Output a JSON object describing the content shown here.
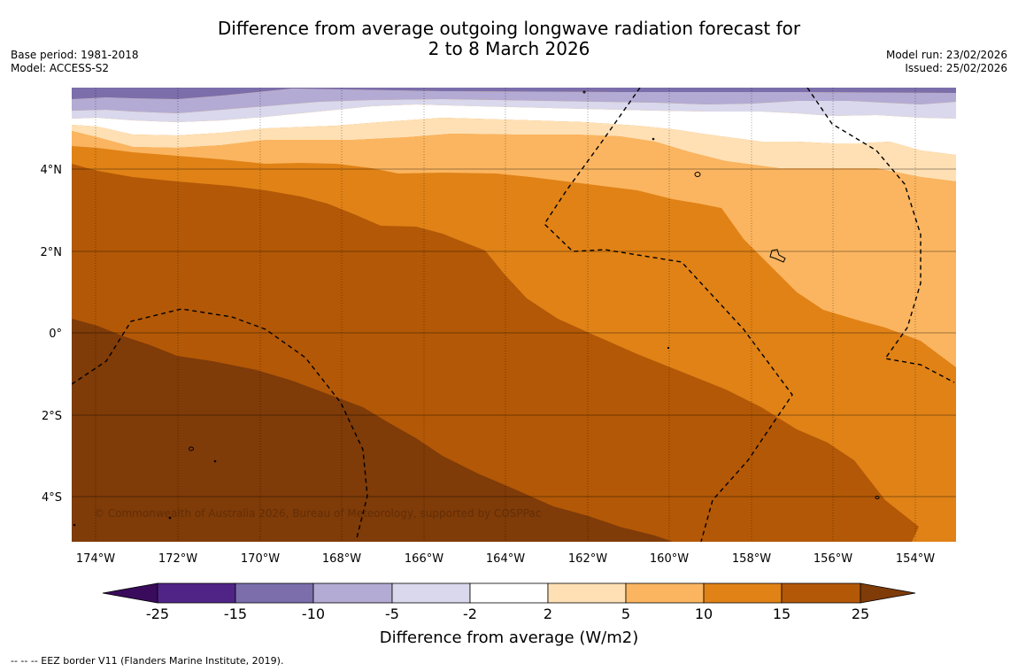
{
  "header": {
    "title_line1": "Difference from average outgoing longwave radiation forecast for",
    "title_line2": "2 to 8 March 2026",
    "base_period": "Base period: 1981-2018",
    "model": "Model: ACCESS-S2",
    "model_run": "Model run: 23/02/2026",
    "issued": "Issued: 25/02/2026"
  },
  "map": {
    "longitude_labels": [
      "174°W",
      "172°W",
      "170°W",
      "168°W",
      "166°W",
      "164°W",
      "162°W",
      "160°W",
      "158°W",
      "156°W",
      "154°W"
    ],
    "latitude_labels": [
      "4°N",
      "2°N",
      "0°",
      "2°S",
      "4°S"
    ],
    "copyright": "© Commonwealth of Australia 2026, Bureau of Meteorology, supported by COSPPac"
  },
  "colorbar": {
    "title": "Difference from average (W/m2)",
    "tick_labels": [
      "-25",
      "-15",
      "-10",
      "-5",
      "-2",
      "2",
      "5",
      "10",
      "15",
      "25"
    ],
    "colors": {
      "below_min": "#3a0b5c",
      "c1": "#4f2486",
      "c2": "#7b6eab",
      "c3": "#b3abd3",
      "c4": "#d9d8ec",
      "c5": "#ffffff",
      "c6": "#ffe0b4",
      "c7": "#fbb560",
      "c8": "#e08216",
      "c9": "#b35806",
      "above_max": "#7f3b08"
    }
  },
  "footnote": "--  --  -- EEZ border V11 (Flanders Marine Institute, 2019)."
}
